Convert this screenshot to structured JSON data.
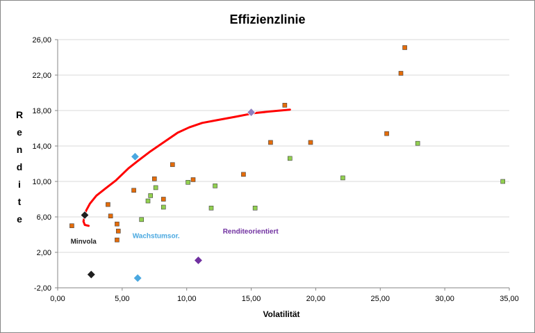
{
  "chart_data": {
    "type": "scatter",
    "title": "Effizienzlinie",
    "xlabel": "Volatilität",
    "ylabel": "Rendite",
    "xlim": [
      0,
      35
    ],
    "ylim": [
      -2,
      26
    ],
    "x_ticks": [
      "0,00",
      "5,00",
      "10,00",
      "15,00",
      "20,00",
      "25,00",
      "30,00",
      "35,00"
    ],
    "x_tick_values": [
      0,
      5,
      10,
      15,
      20,
      25,
      30,
      35
    ],
    "y_ticks": [
      "-2,00",
      "2,00",
      "6,00",
      "10,00",
      "14,00",
      "18,00",
      "22,00",
      "26,00"
    ],
    "y_tick_values": [
      -2,
      2,
      6,
      10,
      14,
      18,
      22,
      26
    ],
    "grid": "horizontal",
    "colors": {
      "orange": "#e46c0a",
      "green": "#92d050",
      "line": "#ff0000",
      "black": "#1f1f1f",
      "blue": "#4aa8e0",
      "lavender": "#8f80c0",
      "purple": "#7030a0",
      "axis": "#868686",
      "grid": "#d9d9d9"
    },
    "series": [
      {
        "color": "orange",
        "marker": "square",
        "points": [
          [
            1.1,
            5.0
          ],
          [
            3.9,
            7.4
          ],
          [
            4.1,
            6.1
          ],
          [
            4.6,
            5.2
          ],
          [
            4.7,
            4.4
          ],
          [
            4.6,
            3.4
          ],
          [
            5.9,
            9.0
          ],
          [
            7.5,
            10.3
          ],
          [
            8.2,
            8.0
          ],
          [
            8.9,
            11.9
          ],
          [
            10.5,
            10.2
          ],
          [
            14.4,
            10.8
          ],
          [
            16.5,
            14.4
          ],
          [
            17.6,
            18.6
          ],
          [
            19.6,
            14.4
          ],
          [
            25.5,
            15.4
          ],
          [
            26.6,
            22.2
          ],
          [
            26.9,
            25.1
          ]
        ]
      },
      {
        "color": "green",
        "marker": "square",
        "points": [
          [
            6.5,
            5.7
          ],
          [
            7.0,
            7.8
          ],
          [
            7.2,
            8.4
          ],
          [
            7.6,
            9.3
          ],
          [
            8.2,
            7.1
          ],
          [
            10.1,
            9.9
          ],
          [
            11.9,
            7.0
          ],
          [
            12.2,
            9.5
          ],
          [
            15.3,
            7.0
          ],
          [
            18.0,
            12.6
          ],
          [
            22.1,
            10.4
          ],
          [
            27.9,
            14.3
          ],
          [
            34.5,
            10.0
          ]
        ]
      },
      {
        "color": "line",
        "marker": "line",
        "points": [
          [
            2.4,
            5.0
          ],
          [
            2.1,
            5.1
          ],
          [
            2.0,
            5.5
          ],
          [
            2.2,
            6.7
          ],
          [
            2.5,
            7.5
          ],
          [
            3.0,
            8.4
          ],
          [
            3.7,
            9.2
          ],
          [
            4.5,
            10.1
          ],
          [
            5.5,
            11.5
          ],
          [
            6.2,
            12.3
          ],
          [
            7.2,
            13.4
          ],
          [
            8.3,
            14.5
          ],
          [
            9.3,
            15.5
          ],
          [
            10.2,
            16.1
          ],
          [
            11.2,
            16.6
          ],
          [
            12.3,
            16.9
          ],
          [
            13.8,
            17.3
          ],
          [
            15.2,
            17.7
          ],
          [
            16.5,
            17.9
          ],
          [
            18.0,
            18.1
          ]
        ]
      },
      {
        "color": "black",
        "marker": "diamond",
        "points": [
          [
            2.1,
            6.2
          ],
          [
            2.6,
            -0.5
          ]
        ]
      },
      {
        "color": "blue",
        "marker": "diamond",
        "points": [
          [
            6.0,
            12.8
          ],
          [
            6.2,
            -0.9
          ]
        ]
      },
      {
        "color": "lavender",
        "marker": "diamond",
        "points": [
          [
            15.0,
            17.8
          ]
        ]
      },
      {
        "color": "purple",
        "marker": "diamond",
        "points": [
          [
            10.9,
            1.1
          ]
        ]
      }
    ],
    "annotations": [
      {
        "text": "Minvola",
        "x": 1.0,
        "y": 3.0,
        "color": "black"
      },
      {
        "text": "Wachstumsor.",
        "x": 5.8,
        "y": 3.6,
        "color": "blue"
      },
      {
        "text": "Renditeorientiert",
        "x": 12.8,
        "y": 4.1,
        "color": "purple"
      }
    ]
  }
}
